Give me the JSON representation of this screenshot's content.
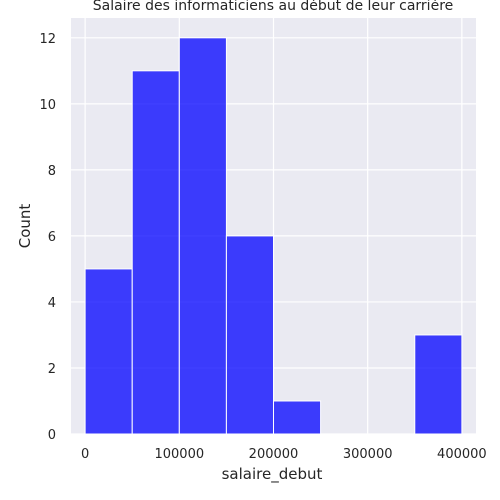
{
  "chart_data": {
    "type": "histogram",
    "title": "Salaire des informaticiens au début de leur carrière",
    "xlabel": "salaire_debut",
    "ylabel": "Count",
    "xlim": [
      -15000,
      415000
    ],
    "ylim": [
      0,
      12.6
    ],
    "x_ticks": [
      0,
      100000,
      200000,
      300000,
      400000
    ],
    "y_ticks": [
      0,
      2,
      4,
      6,
      8,
      10,
      12
    ],
    "bins": [
      {
        "start": 0,
        "end": 50000,
        "count": 5
      },
      {
        "start": 50000,
        "end": 100000,
        "count": 11
      },
      {
        "start": 100000,
        "end": 150000,
        "count": 12
      },
      {
        "start": 150000,
        "end": 200000,
        "count": 6
      },
      {
        "start": 200000,
        "end": 250000,
        "count": 1
      },
      {
        "start": 250000,
        "end": 300000,
        "count": 0
      },
      {
        "start": 300000,
        "end": 350000,
        "count": 0
      },
      {
        "start": 350000,
        "end": 400000,
        "count": 3
      }
    ],
    "bar_color": "#0000ff",
    "background_color": "#eaeaf2",
    "grid": true,
    "legend": "none"
  }
}
